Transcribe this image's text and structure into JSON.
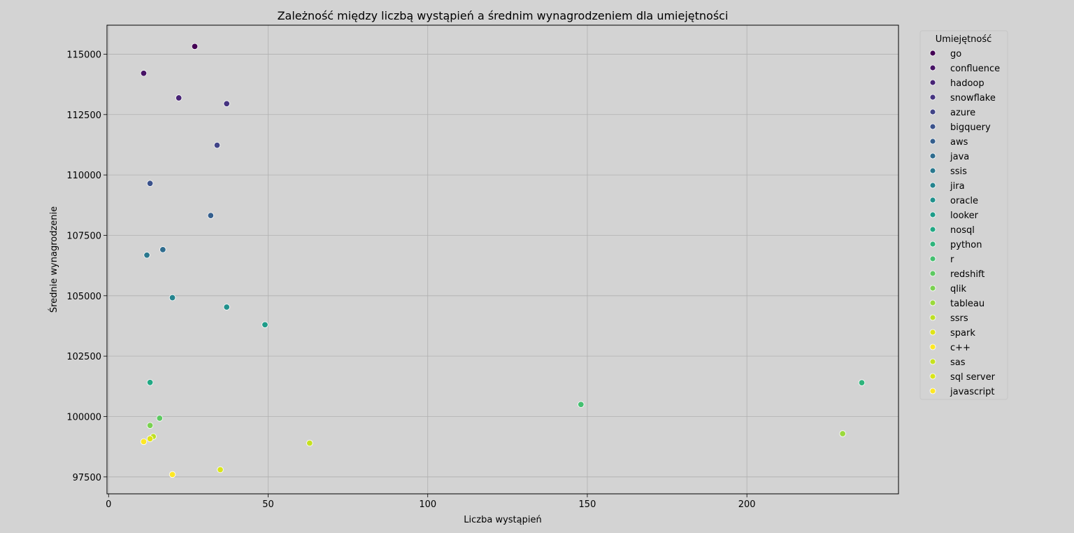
{
  "chart_data": {
    "type": "scatter",
    "title": "Zależność między liczbą wystąpień a średnim wynagrodzeniem dla umiejętności",
    "xlabel": "Liczba wystąpień",
    "ylabel": "Średnie wynagrodzenie",
    "xlim": [
      -0.5,
      247.5
    ],
    "ylim": [
      96800,
      116200
    ],
    "xticks": [
      0,
      50,
      100,
      150,
      200
    ],
    "yticks": [
      97500,
      100000,
      102500,
      105000,
      107500,
      110000,
      112500,
      115000
    ],
    "grid": true,
    "legend": {
      "title": "Umiejętność",
      "placement": "outside-right"
    },
    "series": [
      {
        "name": "go",
        "color": "#440154",
        "x": 27,
        "y": 115320
      },
      {
        "name": "confluence",
        "color": "#471365",
        "x": 11,
        "y": 114210
      },
      {
        "name": "hadoop",
        "color": "#482475",
        "x": 22,
        "y": 113190
      },
      {
        "name": "snowflake",
        "color": "#463480",
        "x": 37,
        "y": 112950
      },
      {
        "name": "azure",
        "color": "#414487",
        "x": 34,
        "y": 111230
      },
      {
        "name": "bigquery",
        "color": "#3b528b",
        "x": 13,
        "y": 109650
      },
      {
        "name": "aws",
        "color": "#355f8d",
        "x": 32,
        "y": 108320
      },
      {
        "name": "java",
        "color": "#2f6c8e",
        "x": 17,
        "y": 106910
      },
      {
        "name": "ssis",
        "color": "#2a788e",
        "x": 12,
        "y": 106680
      },
      {
        "name": "jira",
        "color": "#25848e",
        "x": 20,
        "y": 104920
      },
      {
        "name": "oracle",
        "color": "#21918c",
        "x": 37,
        "y": 104530
      },
      {
        "name": "looker",
        "color": "#1e9c89",
        "x": 49,
        "y": 103800
      },
      {
        "name": "nosql",
        "color": "#22a884",
        "x": 13,
        "y": 101410
      },
      {
        "name": "python",
        "color": "#2fb47c",
        "x": 236,
        "y": 101400
      },
      {
        "name": "r",
        "color": "#44bf70",
        "x": 148,
        "y": 100500
      },
      {
        "name": "redshift",
        "color": "#5ec962",
        "x": 16,
        "y": 99930
      },
      {
        "name": "qlik",
        "color": "#7ad151",
        "x": 13,
        "y": 99630
      },
      {
        "name": "tableau",
        "color": "#9bd93c",
        "x": 230,
        "y": 99290
      },
      {
        "name": "ssrs",
        "color": "#bddf26",
        "x": 14,
        "y": 99170
      },
      {
        "name": "spark",
        "color": "#dfe318",
        "x": 13,
        "y": 99080
      },
      {
        "name": "c++",
        "color": "#fde725",
        "x": 11,
        "y": 98960
      },
      {
        "name": "sas",
        "color": "#c6e120",
        "x": 63,
        "y": 98900
      },
      {
        "name": "sql server",
        "color": "#d9e51a",
        "x": 35,
        "y": 97800
      },
      {
        "name": "javascript",
        "color": "#fde725",
        "x": 20,
        "y": 97600
      }
    ]
  }
}
